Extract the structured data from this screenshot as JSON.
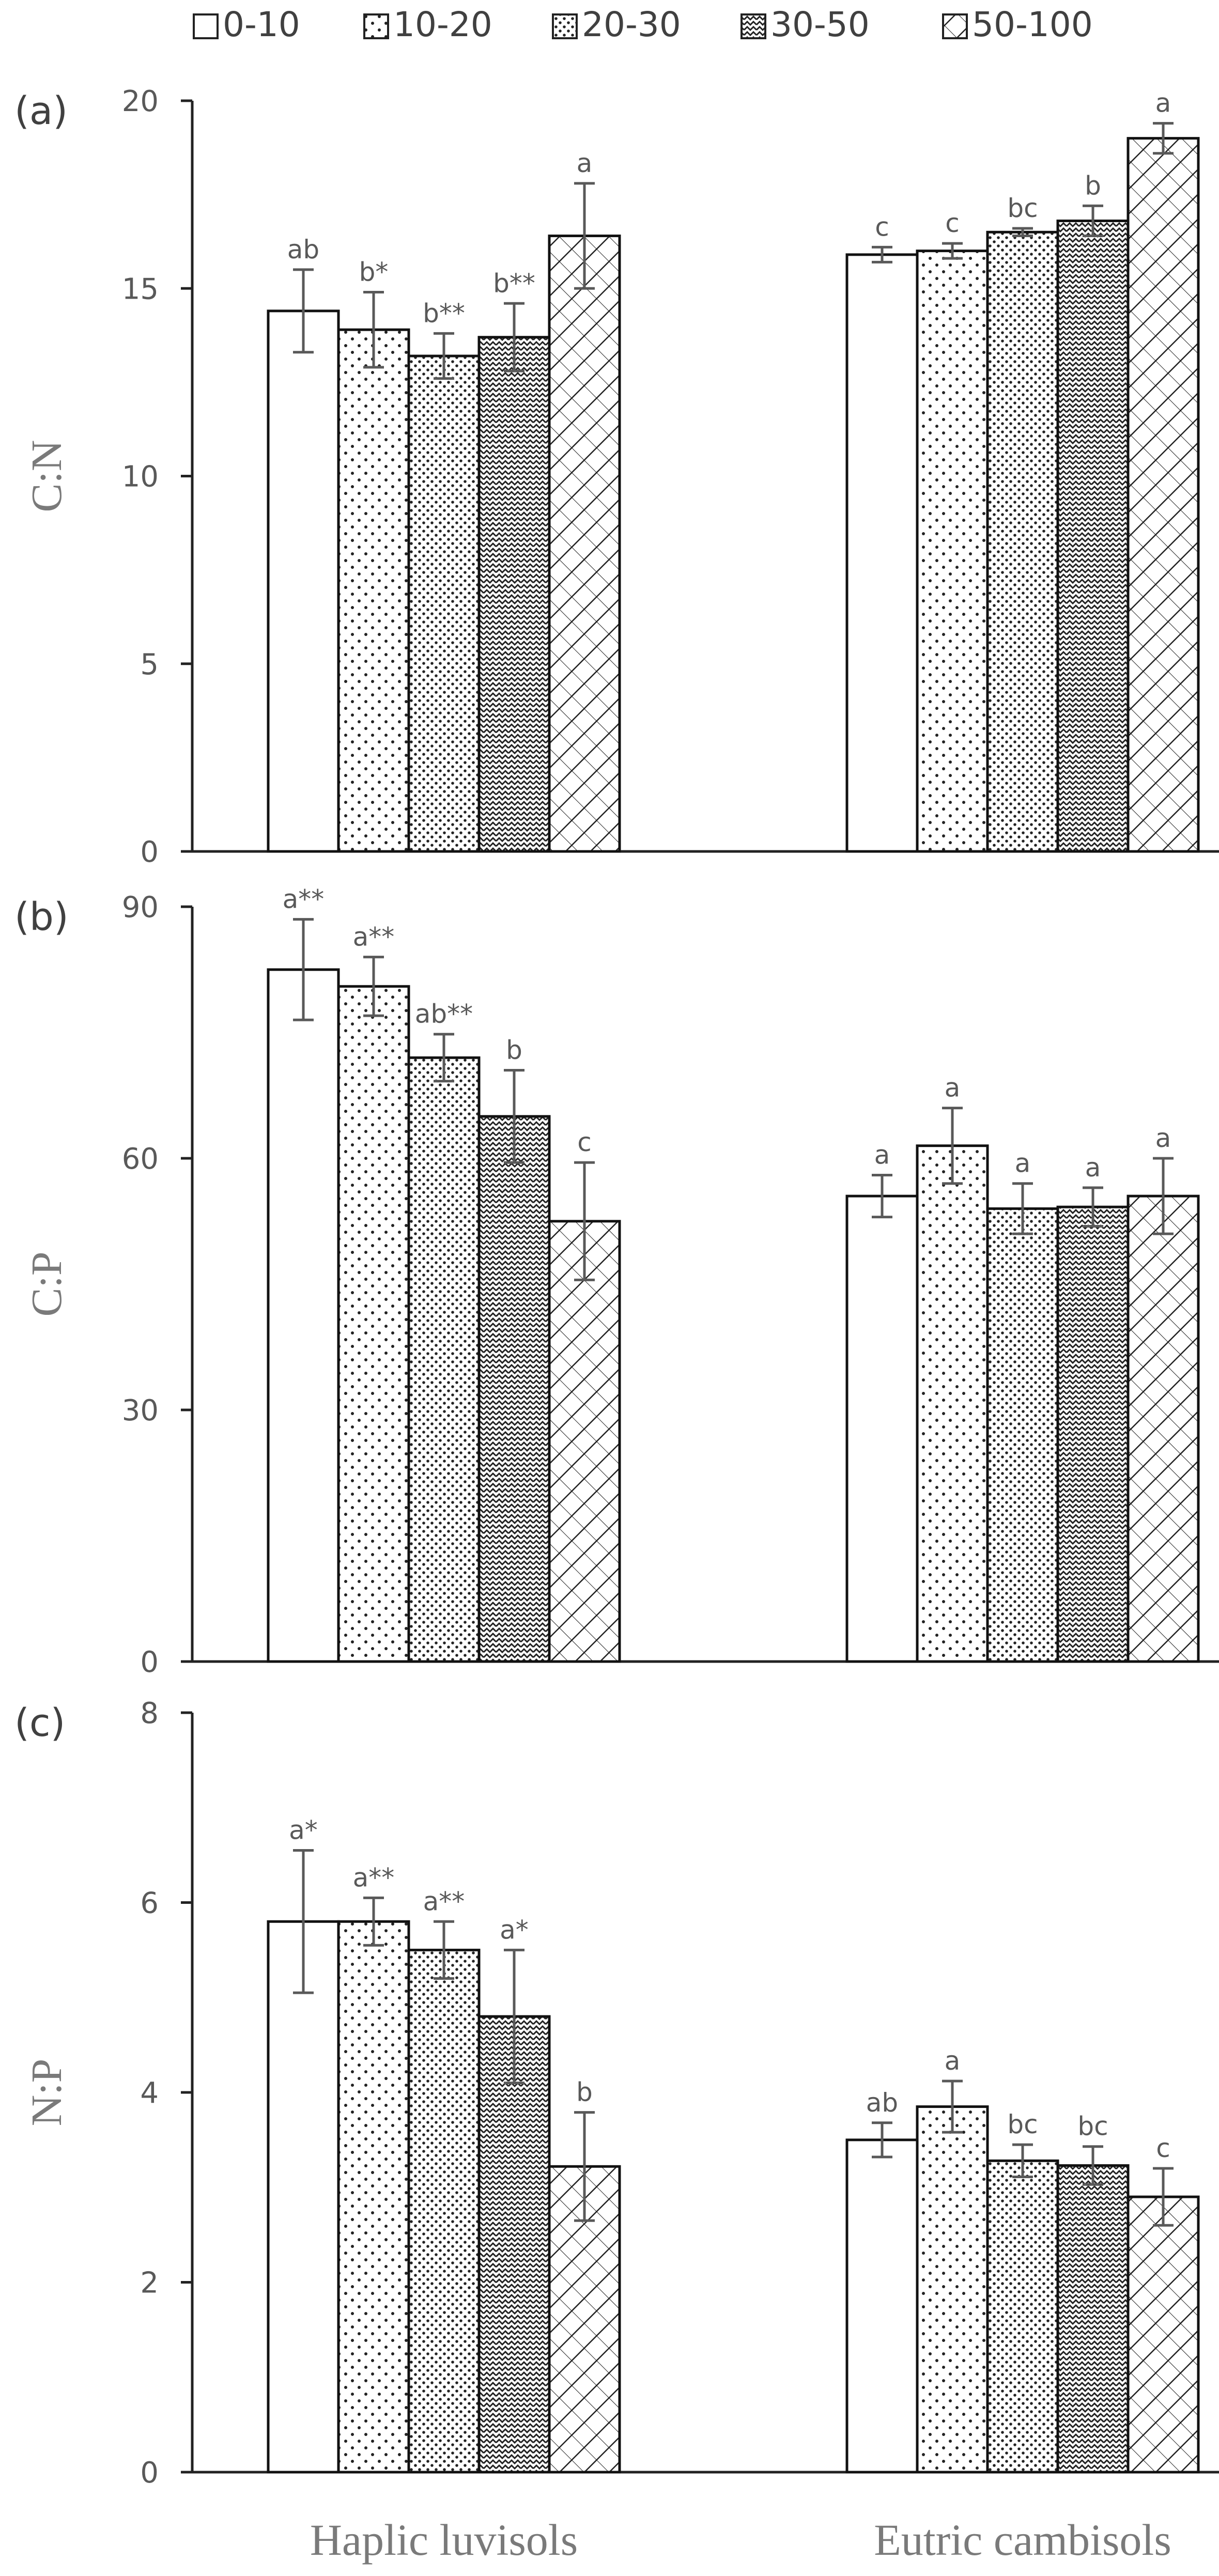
{
  "legend": {
    "entries": [
      {
        "label": "0-10",
        "pattern": "blank"
      },
      {
        "label": "10-20",
        "pattern": "dots-sparse"
      },
      {
        "label": "20-30",
        "pattern": "dots-dense"
      },
      {
        "label": "30-50",
        "pattern": "zigzag"
      },
      {
        "label": "50-100",
        "pattern": "diagonal"
      }
    ]
  },
  "chart_data": [
    {
      "type": "bar",
      "panel_label": "(a)",
      "ylabel": "C:N",
      "xlabel": "",
      "categories": [
        "Haplic luvisols",
        "Eutric cambisols"
      ],
      "ylim": [
        0,
        20
      ],
      "yticks": [
        0,
        5,
        10,
        15,
        20
      ],
      "series": [
        {
          "name": "0-10",
          "values": [
            14.4,
            15.9
          ],
          "errors": [
            1.1,
            0.2
          ],
          "letters": [
            "ab",
            "c"
          ]
        },
        {
          "name": "10-20",
          "values": [
            13.9,
            16.0
          ],
          "errors": [
            1.0,
            0.2
          ],
          "letters": [
            "b*",
            "c"
          ]
        },
        {
          "name": "20-30",
          "values": [
            13.2,
            16.5
          ],
          "errors": [
            0.6,
            0.1
          ],
          "letters": [
            "b**",
            "bc"
          ]
        },
        {
          "name": "30-50",
          "values": [
            13.7,
            16.8
          ],
          "errors": [
            0.9,
            0.4
          ],
          "letters": [
            "b**",
            "b"
          ]
        },
        {
          "name": "50-100",
          "values": [
            16.4,
            19.0
          ],
          "errors": [
            1.4,
            0.4
          ],
          "letters": [
            "a",
            "a"
          ]
        }
      ]
    },
    {
      "type": "bar",
      "panel_label": "(b)",
      "ylabel": "C:P",
      "xlabel": "",
      "categories": [
        "Haplic luvisols",
        "Eutric cambisols"
      ],
      "ylim": [
        0,
        90
      ],
      "yticks": [
        0,
        30,
        60,
        90
      ],
      "series": [
        {
          "name": "0-10",
          "values": [
            82.5,
            55.5
          ],
          "errors": [
            6.0,
            2.5
          ],
          "letters": [
            "a**",
            "a"
          ]
        },
        {
          "name": "10-20",
          "values": [
            80.5,
            61.5
          ],
          "errors": [
            3.5,
            4.5
          ],
          "letters": [
            "a**",
            "a"
          ]
        },
        {
          "name": "20-30",
          "values": [
            72.0,
            54.0
          ],
          "errors": [
            2.8,
            3.0
          ],
          "letters": [
            "ab**",
            "a"
          ]
        },
        {
          "name": "30-50",
          "values": [
            65.0,
            54.2
          ],
          "errors": [
            5.5,
            2.3
          ],
          "letters": [
            "b",
            "a"
          ]
        },
        {
          "name": "50-100",
          "values": [
            52.5,
            55.5
          ],
          "errors": [
            7.0,
            4.5
          ],
          "letters": [
            "c",
            "a"
          ]
        }
      ]
    },
    {
      "type": "bar",
      "panel_label": "(c)",
      "ylabel": "N:P",
      "xlabel": "",
      "categories": [
        "Haplic luvisols",
        "Eutric cambisols"
      ],
      "ylim": [
        0,
        8
      ],
      "yticks": [
        0,
        2,
        4,
        6,
        8
      ],
      "series": [
        {
          "name": "0-10",
          "values": [
            5.8,
            3.5
          ],
          "errors": [
            0.75,
            0.18
          ],
          "letters": [
            "a*",
            "ab"
          ]
        },
        {
          "name": "10-20",
          "values": [
            5.8,
            3.85
          ],
          "errors": [
            0.25,
            0.27
          ],
          "letters": [
            "a**",
            "a"
          ]
        },
        {
          "name": "20-30",
          "values": [
            5.5,
            3.28
          ],
          "errors": [
            0.3,
            0.17
          ],
          "letters": [
            "a**",
            "bc"
          ]
        },
        {
          "name": "30-50",
          "values": [
            4.8,
            3.23
          ],
          "errors": [
            0.7,
            0.2
          ],
          "letters": [
            "a*",
            "bc"
          ]
        },
        {
          "name": "50-100",
          "values": [
            3.22,
            2.9
          ],
          "errors": [
            0.57,
            0.3
          ],
          "letters": [
            "b",
            "c"
          ]
        }
      ]
    }
  ]
}
